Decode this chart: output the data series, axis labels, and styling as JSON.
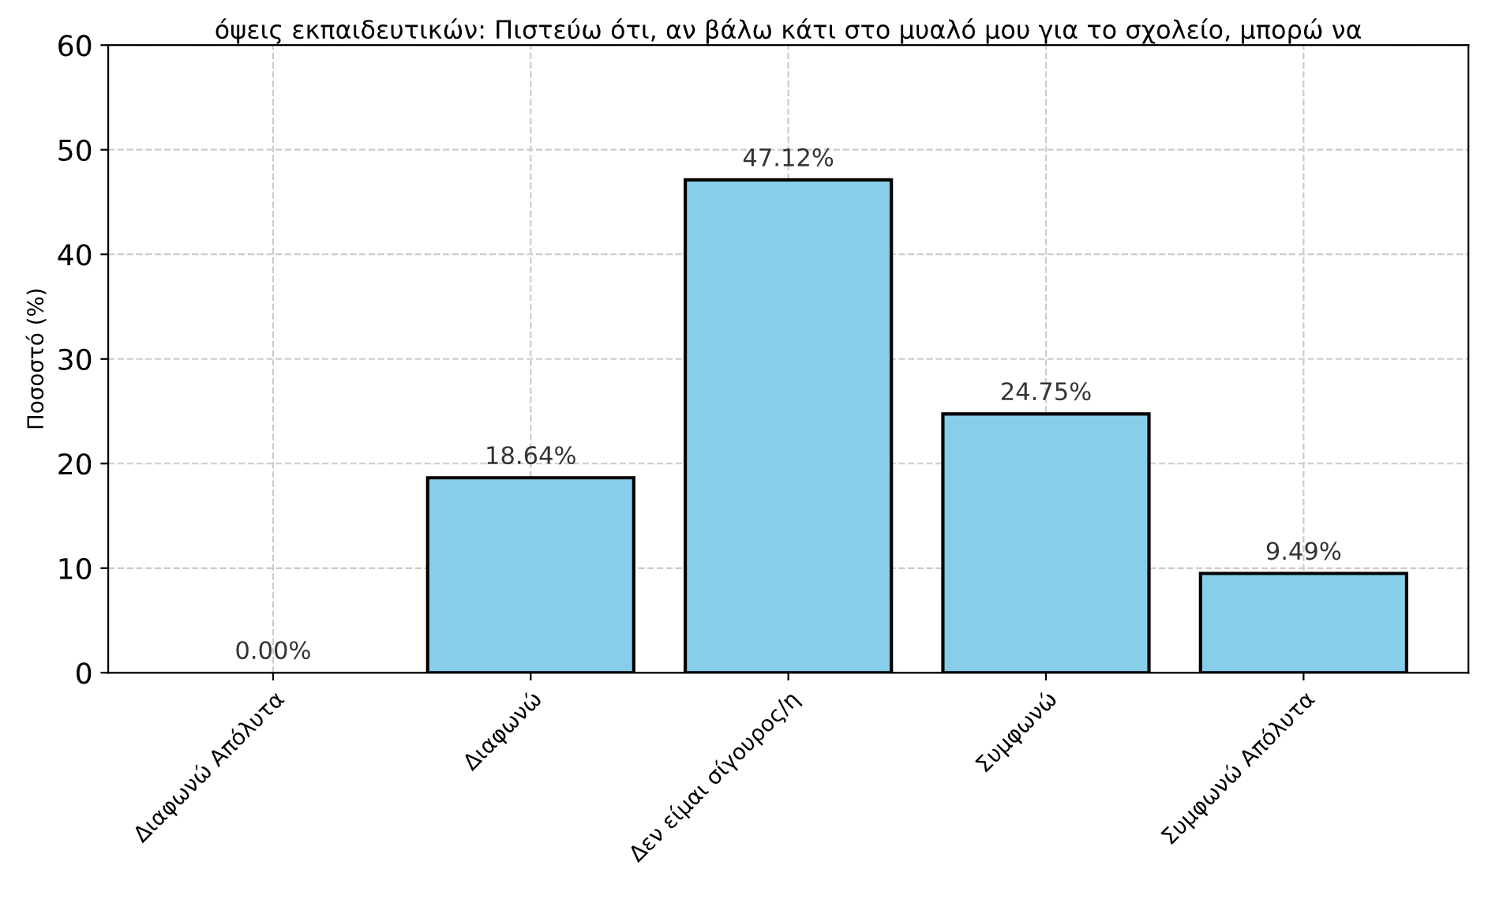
{
  "chart_data": {
    "type": "bar",
    "title": "όψεις εκπαιδευτικών: Πιστεύω ότι, αν βάλω κάτι στο μυαλό μου για το σχολείο, μπορώ να",
    "ylabel": "Ποσοστό (%)",
    "categories": [
      "Διαφωνώ Απόλυτα",
      "Διαφωνώ",
      "Δεν είμαι σίγουρος/η",
      "Συμφωνώ",
      "Συμφωνώ Απόλυτα"
    ],
    "values": [
      0.0,
      18.64,
      47.12,
      24.75,
      9.49
    ],
    "value_labels": [
      "0.00%",
      "18.64%",
      "47.12%",
      "24.75%",
      "9.49%"
    ],
    "color": "#87ceeb",
    "ylim": [
      0,
      60
    ],
    "yticks": [
      0,
      10,
      20,
      30,
      40,
      50,
      60
    ],
    "grid": true
  }
}
